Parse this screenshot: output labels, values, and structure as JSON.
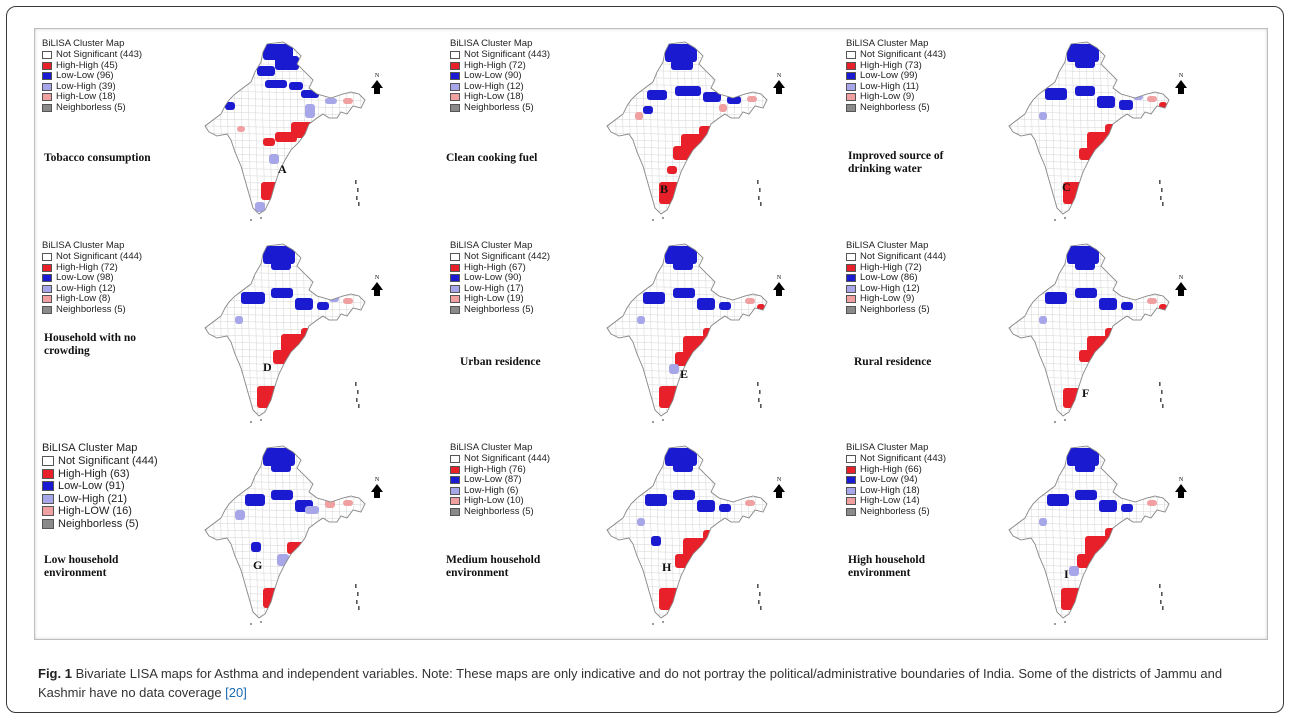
{
  "colors": {
    "not_significant": "#ffffff",
    "high_high": "#e8202a",
    "low_low": "#1a1ad0",
    "low_high": "#a6a6e8",
    "high_low": "#f0a0a0",
    "neighborless": "#8a8a8a"
  },
  "panels": [
    {
      "letter": "A",
      "variable": "Tobacco consumption",
      "legend": {
        "title": "BiLISA Cluster Map",
        "items": [
          {
            "key": "not_significant",
            "label": "Not Significant (443)"
          },
          {
            "key": "high_high",
            "label": "High-High (45)"
          },
          {
            "key": "low_low",
            "label": "Low-Low (96)"
          },
          {
            "key": "low_high",
            "label": "Low-High (39)"
          },
          {
            "key": "high_low",
            "label": "High-Low (18)"
          },
          {
            "key": "neighborless",
            "label": "Neighborless (5)"
          }
        ]
      }
    },
    {
      "letter": "B",
      "variable": "Clean cooking fuel",
      "legend": {
        "title": "BiLISA Cluster Map",
        "items": [
          {
            "key": "not_significant",
            "label": "Not Significant (443)"
          },
          {
            "key": "high_high",
            "label": "High-High (72)"
          },
          {
            "key": "low_low",
            "label": "Low-Low (90)"
          },
          {
            "key": "low_high",
            "label": "Low-High (12)"
          },
          {
            "key": "high_low",
            "label": "High-Low (18)"
          },
          {
            "key": "neighborless",
            "label": "Neighborless (5)"
          }
        ]
      }
    },
    {
      "letter": "C",
      "variable": "Improved source of drinking water",
      "legend": {
        "title": "BiLISA Cluster Map",
        "items": [
          {
            "key": "not_significant",
            "label": "Not Significant (443)"
          },
          {
            "key": "high_high",
            "label": "High-High (73)"
          },
          {
            "key": "low_low",
            "label": "Low-Low (99)"
          },
          {
            "key": "low_high",
            "label": "Low-High (11)"
          },
          {
            "key": "high_low",
            "label": "High-Low (9)"
          },
          {
            "key": "neighborless",
            "label": "Neighborless (5)"
          }
        ]
      }
    },
    {
      "letter": "D",
      "variable": "Household with no crowding",
      "legend": {
        "title": "BiLISA Cluster Map",
        "items": [
          {
            "key": "not_significant",
            "label": "Not Significant (444)"
          },
          {
            "key": "high_high",
            "label": "High-High (72)"
          },
          {
            "key": "low_low",
            "label": "Low-Low (98)"
          },
          {
            "key": "low_high",
            "label": "Low-High (12)"
          },
          {
            "key": "high_low",
            "label": "High-Low (8)"
          },
          {
            "key": "neighborless",
            "label": "Neighborless (5)"
          }
        ]
      }
    },
    {
      "letter": "E",
      "variable": "Urban residence",
      "legend": {
        "title": "BiLISA Cluster Map",
        "items": [
          {
            "key": "not_significant",
            "label": "Not Significant (442)"
          },
          {
            "key": "high_high",
            "label": "High-High (67)"
          },
          {
            "key": "low_low",
            "label": "Low-Low (90)"
          },
          {
            "key": "low_high",
            "label": "Low-High (17)"
          },
          {
            "key": "high_low",
            "label": "High-Low (19)"
          },
          {
            "key": "neighborless",
            "label": "Neighborless (5)"
          }
        ]
      }
    },
    {
      "letter": "F",
      "variable": "Rural residence",
      "legend": {
        "title": "BiLISA Cluster Map",
        "items": [
          {
            "key": "not_significant",
            "label": "Not Significant (444)"
          },
          {
            "key": "high_high",
            "label": "High-High (72)"
          },
          {
            "key": "low_low",
            "label": "Low-Low (86)"
          },
          {
            "key": "low_high",
            "label": "Low-High (12)"
          },
          {
            "key": "high_low",
            "label": "High-Low (9)"
          },
          {
            "key": "neighborless",
            "label": "Neighborless (5)"
          }
        ]
      }
    },
    {
      "letter": "G",
      "variable": "Low household environment",
      "legend": {
        "title": "BiLISA Cluster Map",
        "items": [
          {
            "key": "not_significant",
            "label": "Not Significant (444)"
          },
          {
            "key": "high_high",
            "label": "High-High (63)"
          },
          {
            "key": "low_low",
            "label": "Low-Low (91)"
          },
          {
            "key": "low_high",
            "label": "Low-High (21)"
          },
          {
            "key": "high_low",
            "label": "High-LOW (16)"
          },
          {
            "key": "neighborless",
            "label": "Neighborless (5)"
          }
        ]
      }
    },
    {
      "letter": "H",
      "variable": "Medium household environment",
      "legend": {
        "title": "BiLISA Cluster Map",
        "items": [
          {
            "key": "not_significant",
            "label": "Not Significant (444)"
          },
          {
            "key": "high_high",
            "label": "High-High (76)"
          },
          {
            "key": "low_low",
            "label": "Low-Low (87)"
          },
          {
            "key": "low_high",
            "label": "Low-High (6)"
          },
          {
            "key": "high_low",
            "label": "High-Low (10)"
          },
          {
            "key": "neighborless",
            "label": "Neighborless (5)"
          }
        ]
      }
    },
    {
      "letter": "I",
      "variable": "High household environment",
      "legend": {
        "title": "BiLISA Cluster Map",
        "items": [
          {
            "key": "not_significant",
            "label": "Not Significant (443)"
          },
          {
            "key": "high_high",
            "label": "High-High (66)"
          },
          {
            "key": "low_low",
            "label": "Low-Low (94)"
          },
          {
            "key": "low_high",
            "label": "Low-High (18)"
          },
          {
            "key": "high_low",
            "label": "High-Low (14)"
          },
          {
            "key": "neighborless",
            "label": "Neighborless (5)"
          }
        ]
      }
    }
  ],
  "caption": {
    "figure_label": "Fig. 1",
    "text": " Bivariate LISA maps for Asthma and independent variables. Note: These maps are only indicative and do not portray the political/administrative boundaries of India. Some of the districts of Jammu and Kashmir have no data coverage ",
    "reference": "[20]"
  }
}
